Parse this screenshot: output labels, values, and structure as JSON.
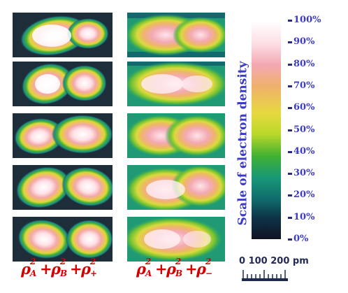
{
  "formulas": {
    "left": {
      "rho": "ρ",
      "terms": [
        {
          "sub": "A",
          "sup": "2"
        },
        {
          "sub": "B",
          "sup": "2"
        },
        {
          "sub": "+",
          "sup": "2"
        }
      ],
      "op": "+"
    },
    "right": {
      "rho": "ρ",
      "terms": [
        {
          "sub": "A",
          "sup": "2"
        },
        {
          "sub": "B",
          "sup": "2"
        },
        {
          "sub": "−",
          "sup": "2"
        }
      ],
      "op": "+"
    }
  },
  "scale": {
    "title": "Scale of electron density",
    "ticks": [
      "100%",
      "90%",
      "80%",
      "70%",
      "60%",
      "50%",
      "40%",
      "30%",
      "20%",
      "10%",
      "0%"
    ],
    "colors": [
      "#ffffff",
      "#ffe0e6",
      "#f5a5b3",
      "#f0b070",
      "#e8d840",
      "#b8d828",
      "#38b030",
      "#189878",
      "#106a6c",
      "#0e3448",
      "#101224"
    ]
  },
  "scalebar": {
    "label": "0  100  200 pm"
  },
  "colors": {
    "formula": "#d40000",
    "scale_text": "#3b3bc6"
  }
}
